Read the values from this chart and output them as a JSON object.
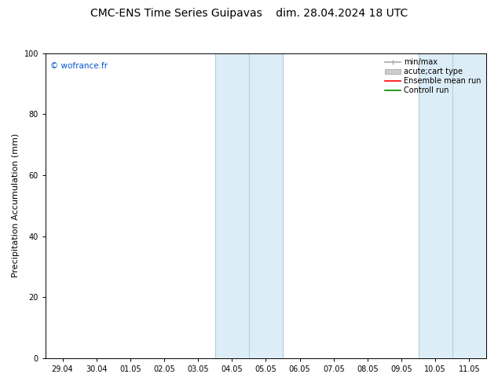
{
  "title": "CMC-ENS Time Series Guipavas",
  "title2": "dim. 28.04.2024 18 UTC",
  "ylabel": "Precipitation Accumulation (mm)",
  "ylim": [
    0,
    100
  ],
  "yticks": [
    0,
    20,
    40,
    60,
    80,
    100
  ],
  "x_labels": [
    "29.04",
    "30.04",
    "01.05",
    "02.05",
    "03.05",
    "04.05",
    "05.05",
    "06.05",
    "07.05",
    "08.05",
    "09.05",
    "10.05",
    "11.05"
  ],
  "shaded_regions": [
    {
      "xstart": 4.5,
      "xend": 6.5
    },
    {
      "xstart": 10.5,
      "xend": 13.0
    }
  ],
  "shaded_color": "#ddedf7",
  "shaded_line_color": "#b0cce0",
  "shaded_inner_lines": [
    {
      "x": 5.5
    },
    {
      "x": 11.5
    }
  ],
  "background_color": "#ffffff",
  "watermark": "© wofrance.fr",
  "watermark_color": "#0055cc",
  "legend_entries": [
    {
      "label": "min/max",
      "color": "#aaaaaa",
      "lw": 1.2,
      "type": "errorbar"
    },
    {
      "label": "acute;cart type",
      "color": "#cccccc",
      "lw": 6,
      "type": "band"
    },
    {
      "label": "Ensemble mean run",
      "color": "#ff0000",
      "lw": 1.2,
      "type": "line"
    },
    {
      "label": "Controll run",
      "color": "#008800",
      "lw": 1.2,
      "type": "line"
    }
  ],
  "spine_color": "#000000",
  "tick_fontsize": 7,
  "ylabel_fontsize": 8,
  "title_fontsize": 10,
  "legend_fontsize": 7
}
